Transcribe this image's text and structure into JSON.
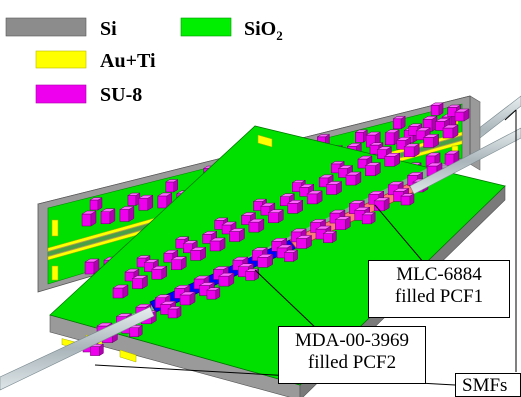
{
  "legend": {
    "items": [
      {
        "label": "Si",
        "color": "#8c8c8c"
      },
      {
        "label": "SiO",
        "subscript": "2",
        "color": "#00ee00"
      },
      {
        "label": "Au+Ti",
        "color": "#ffff00"
      },
      {
        "label": "SU-8",
        "color": "#ee00ee"
      }
    ]
  },
  "callouts": {
    "pcf1": {
      "line1": "MLC-6884",
      "line2": "filled PCF1",
      "color": "#ff7a7a"
    },
    "pcf2": {
      "line1": "MDA-00-3969",
      "line2": "filled PCF2",
      "color": "#0000ff"
    },
    "smf": {
      "label": "SMFs"
    }
  }
}
